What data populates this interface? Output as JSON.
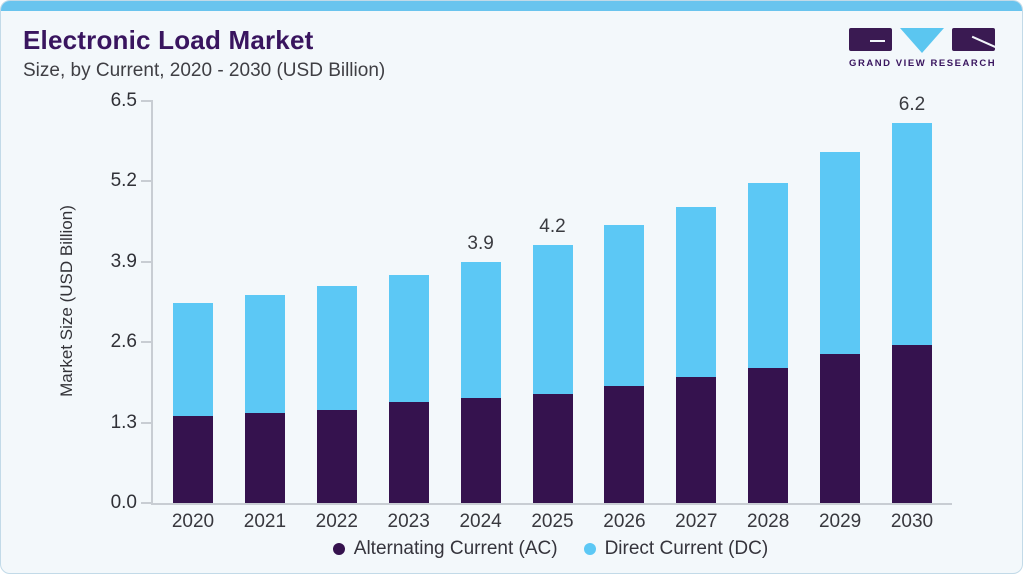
{
  "header": {
    "title": "Electronic Load Market",
    "subtitle": "Size, by Current, 2020 - 2030 (USD Billion)"
  },
  "logo": {
    "text": "GRAND VIEW RESEARCH",
    "icon": "gvr-logo-mark",
    "purple": "#3A1A52",
    "blue": "#5BC6F0"
  },
  "colors": {
    "card_background": "#F3F8FB",
    "top_accent_bar": "#69C4EE",
    "card_border": "#C2DAE8",
    "title_text": "#39155F",
    "axis_line": "#C8CDD3",
    "axis_text": "#303137"
  },
  "chart_data": {
    "type": "bar",
    "stacked": true,
    "title": "Electronic Load Market",
    "subtitle": "Size, by Current, 2020 - 2030 (USD Billion)",
    "xlabel": "",
    "ylabel": "Market Size (USD Billion)",
    "ylim": [
      0,
      6.5
    ],
    "yticks": [
      0.0,
      1.3,
      2.6,
      3.9,
      5.2,
      6.5
    ],
    "ytick_labels": [
      "0.0",
      "1.3",
      "2.6",
      "3.9",
      "5.2",
      "6.5"
    ],
    "grid": false,
    "legend_position": "bottom",
    "categories": [
      "2020",
      "2021",
      "2022",
      "2023",
      "2024",
      "2025",
      "2026",
      "2027",
      "2028",
      "2029",
      "2030"
    ],
    "series": [
      {
        "name": "Alternating Current (AC)",
        "color": "#35124E",
        "values": [
          1.4,
          1.46,
          1.5,
          1.64,
          1.7,
          1.76,
          1.9,
          2.03,
          2.19,
          2.41,
          2.55
        ]
      },
      {
        "name": "Direct Current (DC)",
        "color": "#5CC8F5",
        "values": [
          1.83,
          1.9,
          2.01,
          2.05,
          2.2,
          2.41,
          2.59,
          2.76,
          2.99,
          3.27,
          3.6
        ]
      }
    ],
    "total_labels": [
      "",
      "",
      "",
      "",
      "3.9",
      "4.2",
      "",
      "",
      "",
      "",
      "6.2"
    ]
  }
}
